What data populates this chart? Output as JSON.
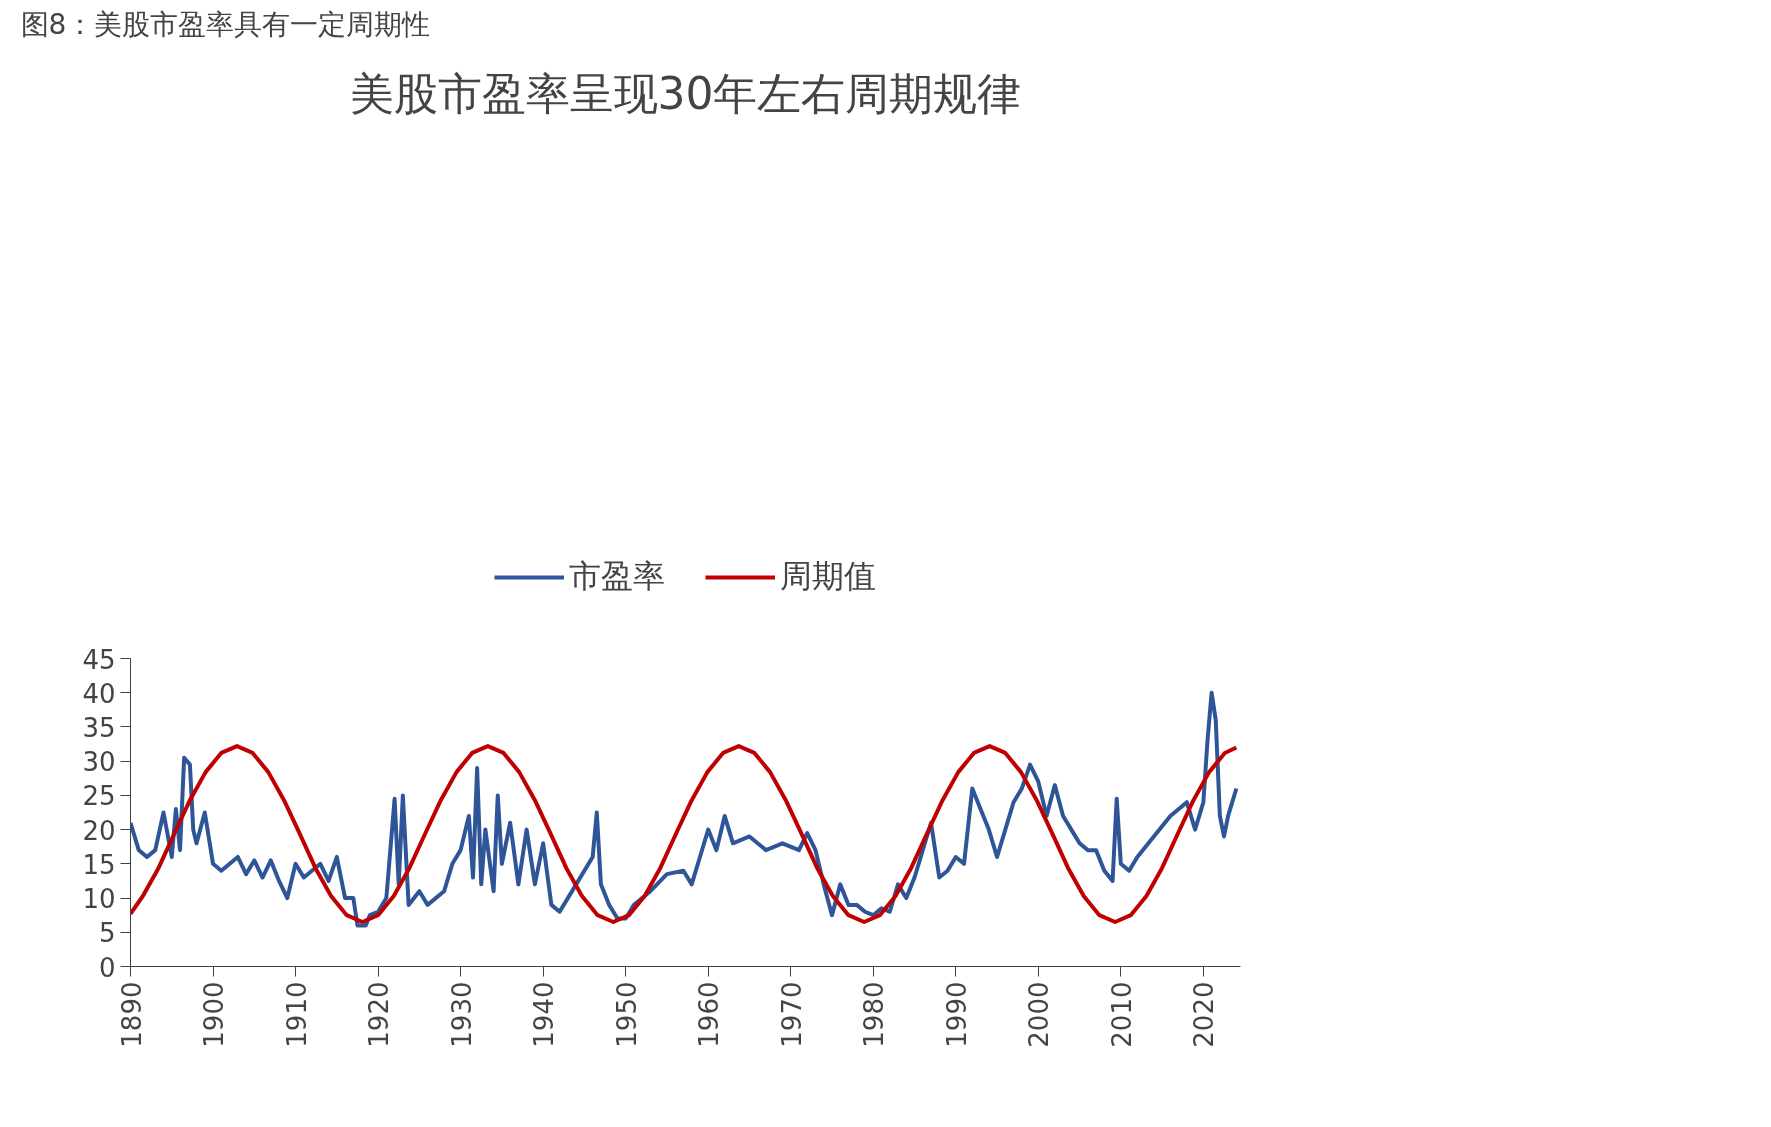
{
  "chart_data": {
    "type": "line",
    "title": "美股市盈率呈现30年左右周期规律",
    "subtitle": "图8：美股市盈率具有一定周期性",
    "xlim": [
      1890,
      2024.5
    ],
    "xticks": [
      1890,
      1900,
      1910,
      1920,
      1930,
      1940,
      1950,
      1960,
      1970,
      1980,
      1990,
      2000,
      2010,
      2020
    ],
    "ylim": [
      0,
      45
    ],
    "yticks": [
      0,
      5,
      10,
      15,
      20,
      25,
      30,
      35,
      40,
      45
    ],
    "grid": false,
    "legend": "top",
    "marker": "none",
    "line_style": "solid",
    "series": [
      {
        "name": "市盈率",
        "color": "#2e5597",
        "x": [
          1890,
          1891,
          1892,
          1893,
          1894,
          1895,
          1895.5,
          1896,
          1896.5,
          1897.2,
          1897.6,
          1898,
          1899,
          1900,
          1901,
          1903,
          1904,
          1905,
          1906,
          1907,
          1908,
          1909,
          1910,
          1911,
          1913,
          1914,
          1915,
          1916,
          1917,
          1917.5,
          1918.5,
          1919,
          1920,
          1921,
          1922,
          1922.5,
          1923,
          1923.7,
          1925,
          1926,
          1928,
          1929,
          1930,
          1931,
          1931.5,
          1932,
          1932.5,
          1933,
          1934,
          1934.5,
          1935,
          1936,
          1937,
          1938,
          1939,
          1940,
          1941,
          1942,
          1944,
          1946,
          1946.5,
          1947,
          1948,
          1949,
          1950,
          1951,
          1952,
          1953,
          1955,
          1957,
          1958,
          1959,
          1960,
          1961,
          1962,
          1963,
          1965,
          1967,
          1969,
          1971,
          1972,
          1973,
          1974,
          1975,
          1976,
          1977,
          1978,
          1979,
          1980,
          1981,
          1982,
          1983,
          1984,
          1985,
          1986,
          1987,
          1988,
          1989,
          1990,
          1991,
          1992,
          1993,
          1994,
          1995,
          1996,
          1997,
          1998,
          1999,
          2000,
          2001,
          2002,
          2003,
          2004,
          2005,
          2006,
          2007,
          2008,
          2009,
          2009.5,
          2010,
          2011,
          2012,
          2014,
          2016,
          2018,
          2019,
          2020,
          2020.5,
          2021,
          2021.5,
          2022,
          2022.5,
          2023,
          2024
        ],
        "values": [
          21,
          17,
          16,
          17,
          22.5,
          16,
          23,
          17,
          30.5,
          29.5,
          20,
          18,
          22.5,
          15,
          14,
          16,
          13.5,
          15.5,
          13,
          15.5,
          12.5,
          10,
          15,
          13,
          15,
          12.5,
          16,
          10,
          10,
          6,
          6,
          7.5,
          8,
          10,
          24.5,
          12,
          25,
          9,
          11,
          9,
          11,
          15,
          17,
          22,
          13,
          29,
          12,
          20,
          11,
          25,
          15,
          21,
          12,
          20,
          12,
          18,
          9,
          8,
          12,
          16,
          22.5,
          12,
          9,
          7,
          7,
          9,
          10,
          11,
          13.5,
          14,
          12,
          16,
          20,
          17,
          22,
          18,
          19,
          17,
          18,
          17,
          19.5,
          17,
          12,
          7.5,
          12,
          9,
          9,
          8,
          7.5,
          8.5,
          8,
          12,
          10,
          13,
          17,
          21,
          13,
          14,
          16,
          15,
          26,
          23,
          20,
          16,
          20,
          24,
          26,
          29.5,
          27,
          22,
          26.5,
          22,
          20,
          18,
          17,
          17,
          14,
          12.5,
          24.5,
          15,
          14,
          16,
          19,
          22,
          24,
          20,
          24,
          33,
          40,
          36,
          22,
          19,
          22,
          26
        ]
      },
      {
        "name": "周期值",
        "color": "#c00000",
        "x": [
          1890,
          1891.5,
          1893.4,
          1895.3,
          1897.2,
          1899.1,
          1901.0,
          1902.9,
          1904.8,
          1906.7,
          1908.6,
          1910.5,
          1912.4,
          1914.3,
          1916.2,
          1918.1,
          1920.0,
          1921.9,
          1923.8,
          1925.7,
          1927.6,
          1929.5,
          1931.4,
          1933.3,
          1935.2,
          1937.1,
          1939.0,
          1940.9,
          1942.8,
          1944.7,
          1946.6,
          1948.5,
          1950.4,
          1952.3,
          1954.2,
          1956.1,
          1958.0,
          1959.9,
          1961.8,
          1963.7,
          1965.6,
          1967.5,
          1969.4,
          1971.3,
          1973.2,
          1975.1,
          1977.0,
          1978.9,
          1980.8,
          1982.7,
          1984.6,
          1986.5,
          1988.4,
          1990.3,
          1992.2,
          1994.1,
          1996.0,
          1997.9,
          1999.8,
          2001.7,
          2003.6,
          2005.5,
          2007.4,
          2009.3,
          2011.2,
          2013.1,
          2015.0,
          2016.9,
          2018.8,
          2020.7,
          2022.6,
          2024
        ],
        "values": [
          7.7,
          10.3,
          14.4,
          19.4,
          24.3,
          28.4,
          31.2,
          32.2,
          31.2,
          28.4,
          24.3,
          19.4,
          14.4,
          10.3,
          7.5,
          6.5,
          7.5,
          10.3,
          14.4,
          19.4,
          24.3,
          28.4,
          31.2,
          32.2,
          31.2,
          28.4,
          24.3,
          19.4,
          14.4,
          10.3,
          7.5,
          6.5,
          7.5,
          10.3,
          14.4,
          19.4,
          24.3,
          28.4,
          31.2,
          32.2,
          31.2,
          28.4,
          24.3,
          19.4,
          14.4,
          10.3,
          7.5,
          6.5,
          7.5,
          10.3,
          14.4,
          19.4,
          24.3,
          28.4,
          31.2,
          32.2,
          31.2,
          28.4,
          24.3,
          19.4,
          14.4,
          10.3,
          7.5,
          6.5,
          7.5,
          10.3,
          14.4,
          19.4,
          24.3,
          28.4,
          31.2,
          32
        ]
      }
    ]
  }
}
